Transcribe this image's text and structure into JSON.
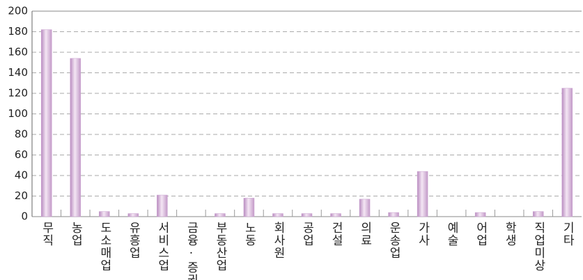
{
  "chart_data": {
    "type": "bar",
    "categories": [
      "무직",
      "농업",
      "도소매업",
      "유흥업",
      "서비스업",
      "금융·증권",
      "부동산업",
      "노동",
      "회사원",
      "공업",
      "건설",
      "의료",
      "운송업",
      "가사",
      "예술",
      "어업",
      "학생",
      "직업미상",
      "기타"
    ],
    "values": [
      182,
      154,
      5,
      3,
      21,
      0,
      3,
      18,
      3,
      3,
      3,
      17,
      4,
      44,
      0,
      4,
      0,
      5,
      125
    ],
    "color": "#c9a0cf",
    "ylim": [
      0,
      200
    ],
    "yticks": [
      0,
      20,
      40,
      60,
      80,
      100,
      120,
      140,
      160,
      180,
      200
    ],
    "grid": true
  }
}
